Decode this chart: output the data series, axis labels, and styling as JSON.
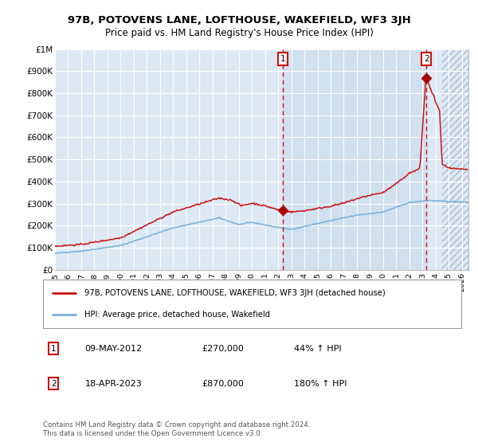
{
  "title": "97B, POTOVENS LANE, LOFTHOUSE, WAKEFIELD, WF3 3JH",
  "subtitle": "Price paid vs. HM Land Registry's House Price Index (HPI)",
  "legend_line1": "97B, POTOVENS LANE, LOFTHOUSE, WAKEFIELD, WF3 3JH (detached house)",
  "legend_line2": "HPI: Average price, detached house, Wakefield",
  "annotation1_label": "1",
  "annotation1_date": "09-MAY-2012",
  "annotation1_price": "£270,000",
  "annotation1_pct": "44% ↑ HPI",
  "annotation2_label": "2",
  "annotation2_date": "18-APR-2023",
  "annotation2_price": "£870,000",
  "annotation2_pct": "180% ↑ HPI",
  "footer": "Contains HM Land Registry data © Crown copyright and database right 2024.\nThis data is licensed under the Open Government Licence v3.0.",
  "hpi_color": "#7aaed6",
  "price_color": "#cc1111",
  "marker_color": "#aa0000",
  "bg_color": "#dce9f5",
  "ylim": [
    0,
    1000000
  ],
  "ytick_vals": [
    0,
    100000,
    200000,
    300000,
    400000,
    500000,
    600000,
    700000,
    800000,
    900000,
    1000000
  ],
  "ytick_labels": [
    "£0",
    "£100K",
    "£200K",
    "£300K",
    "£400K",
    "£500K",
    "£600K",
    "£700K",
    "£800K",
    "£900K",
    "£1M"
  ],
  "xmin": 1995,
  "xmax": 2026.5,
  "sale1_x": 2012.36,
  "sale1_y": 270000,
  "sale2_x": 2023.3,
  "sale2_y": 870000,
  "hatch_start": 2024.5
}
